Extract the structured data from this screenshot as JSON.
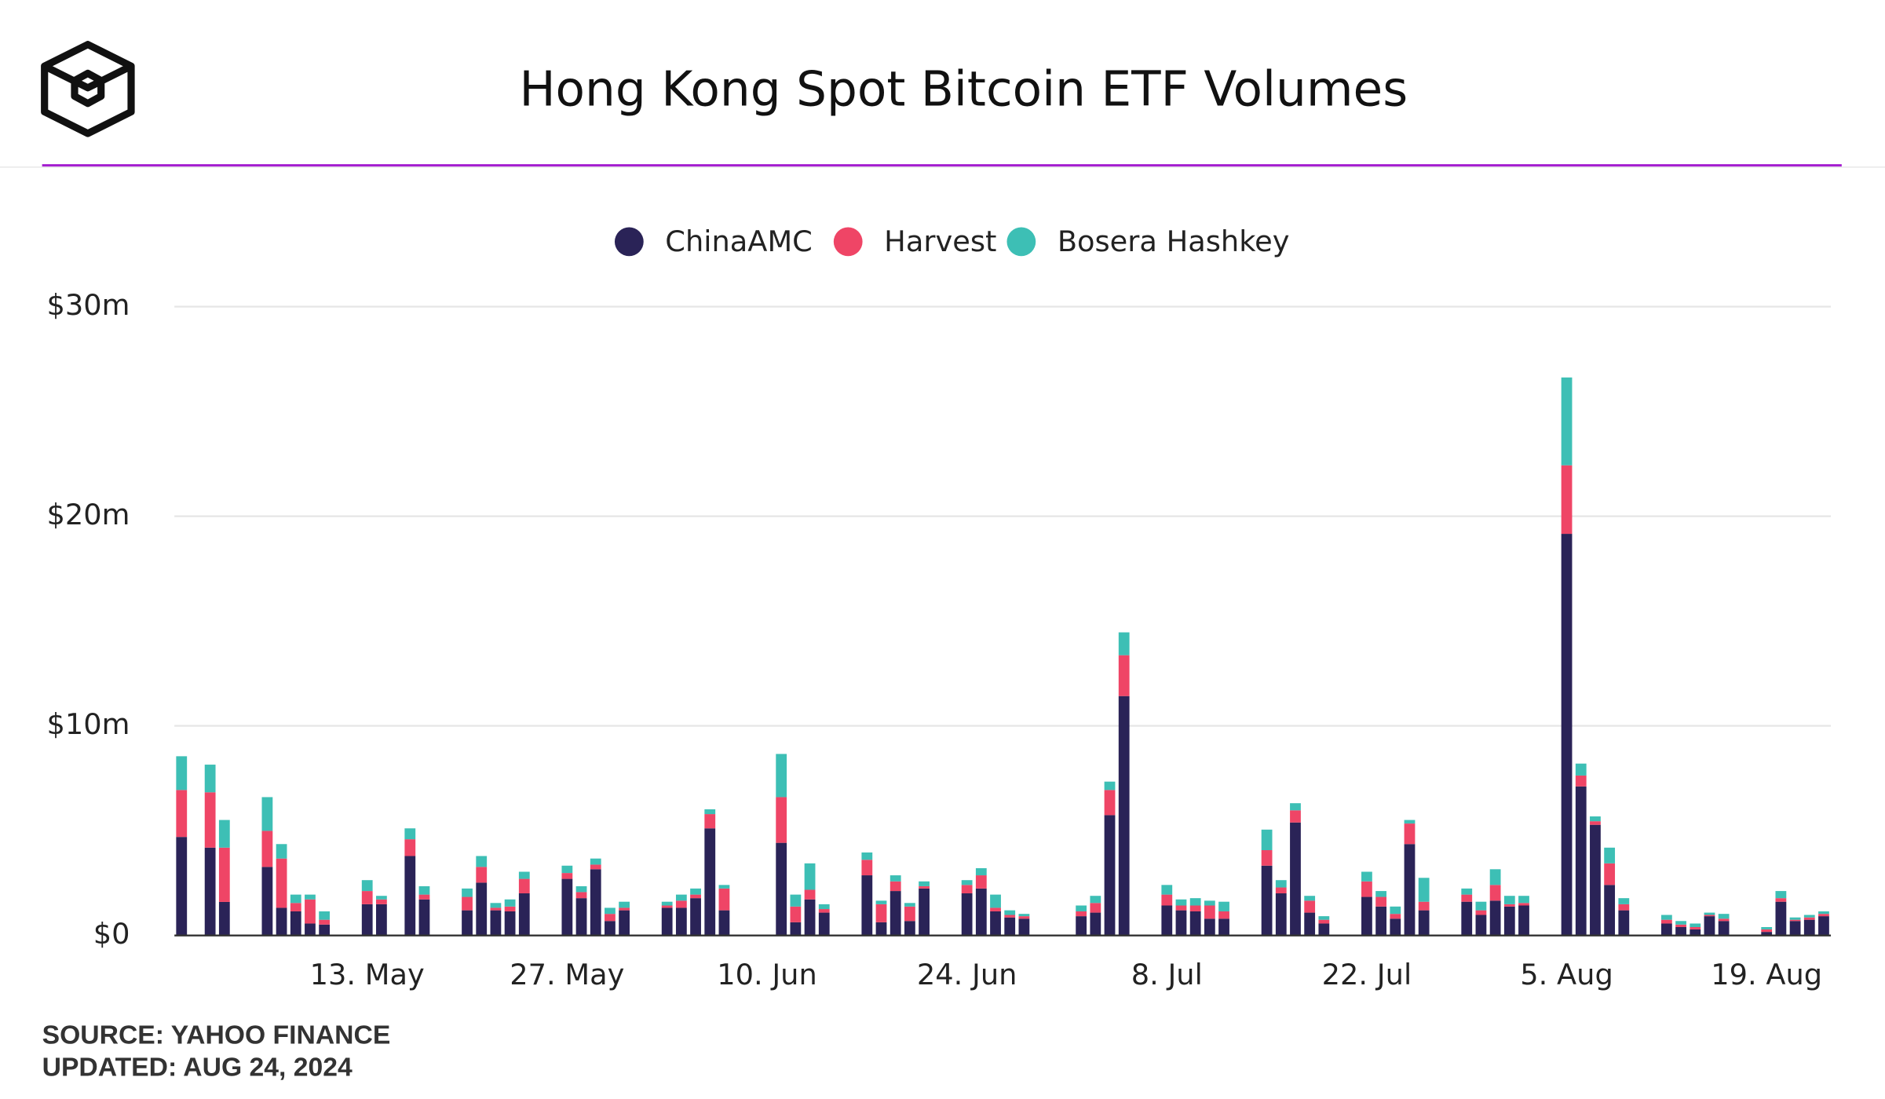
{
  "chart_data": {
    "type": "stacked_bar",
    "title": "Hong Kong Spot Bitcoin ETF Volumes",
    "source": "SOURCE: YAHOO FINANCE",
    "updated": "UPDATED: AUG 24, 2024",
    "legend": "top",
    "grid": true,
    "x": [
      121,
      123,
      124,
      127,
      128,
      129,
      130,
      131,
      134,
      135,
      137,
      138,
      141,
      142,
      143,
      144,
      145,
      148,
      149,
      150,
      151,
      152,
      155,
      156,
      157,
      158,
      159,
      163,
      164,
      165,
      166,
      169,
      170,
      171,
      172,
      173,
      176,
      177,
      178,
      179,
      180,
      184,
      185,
      186,
      187,
      190,
      191,
      192,
      193,
      194,
      197,
      198,
      199,
      200,
      201,
      204,
      205,
      206,
      207,
      208,
      211,
      212,
      213,
      214,
      215,
      218,
      219,
      220,
      221,
      222,
      225,
      226,
      227,
      228,
      229,
      232,
      233,
      234,
      235,
      236
    ],
    "xlim": [
      120.5,
      236.5
    ],
    "xticks": [
      {
        "value": 134,
        "label": "13. May"
      },
      {
        "value": 148,
        "label": "27. May"
      },
      {
        "value": 162,
        "label": "10. Jun"
      },
      {
        "value": 176,
        "label": "24. Jun"
      },
      {
        "value": 190,
        "label": "8. Jul"
      },
      {
        "value": 204,
        "label": "22. Jul"
      },
      {
        "value": 218,
        "label": "5. Aug"
      },
      {
        "value": 232,
        "label": "19. Aug"
      }
    ],
    "ylim": [
      0,
      30
    ],
    "yticks": [
      {
        "value": 0,
        "label": "$0"
      },
      {
        "value": 10,
        "label": "$10m"
      },
      {
        "value": 20,
        "label": "$20m"
      },
      {
        "value": 30,
        "label": "$30m"
      }
    ],
    "series": [
      {
        "name": "ChinaAMC",
        "color": "#2a2357",
        "values": [
          4.7,
          4.19,
          1.6,
          3.27,
          1.32,
          1.15,
          0.57,
          0.52,
          1.49,
          1.49,
          3.79,
          1.72,
          1.2,
          2.52,
          1.2,
          1.15,
          2.01,
          2.7,
          1.78,
          3.16,
          0.69,
          1.2,
          1.32,
          1.32,
          1.78,
          5.11,
          1.2,
          4.42,
          0.63,
          1.72,
          1.09,
          2.87,
          0.63,
          2.12,
          0.69,
          2.24,
          2.01,
          2.24,
          1.15,
          0.86,
          0.8,
          0.92,
          1.09,
          5.74,
          11.42,
          1.43,
          1.2,
          1.15,
          0.8,
          0.8,
          3.33,
          2.01,
          5.39,
          1.09,
          0.57,
          1.84,
          1.38,
          0.8,
          4.36,
          1.2,
          1.61,
          0.98,
          1.66,
          1.38,
          1.43,
          19.16,
          7.11,
          5.28,
          2.41,
          1.2,
          0.57,
          0.4,
          0.29,
          0.92,
          0.69,
          0.17,
          1.61,
          0.69,
          0.75,
          0.92
        ]
      },
      {
        "name": "Harvest",
        "color": "#ef4566",
        "values": [
          2.24,
          2.64,
          2.59,
          1.72,
          2.35,
          0.4,
          1.15,
          0.23,
          0.63,
          0.23,
          0.8,
          0.23,
          0.64,
          0.75,
          0.12,
          0.23,
          0.69,
          0.28,
          0.29,
          0.22,
          0.34,
          0.12,
          0.11,
          0.34,
          0.17,
          0.68,
          1.04,
          2.18,
          0.75,
          0.46,
          0.17,
          0.74,
          0.86,
          0.46,
          0.69,
          0.11,
          0.4,
          0.63,
          0.17,
          0.12,
          0.12,
          0.23,
          0.46,
          1.2,
          1.95,
          0.52,
          0.23,
          0.28,
          0.63,
          0.35,
          0.74,
          0.28,
          0.58,
          0.57,
          0.18,
          0.74,
          0.46,
          0.23,
          0.98,
          0.41,
          0.34,
          0.22,
          0.75,
          0.11,
          0.12,
          3.27,
          0.52,
          0.17,
          1.03,
          0.29,
          0.18,
          0.12,
          0.11,
          0.06,
          0.11,
          0.12,
          0.17,
          0.06,
          0.11,
          0.11
        ]
      },
      {
        "name": "Bosera Hashkey",
        "color": "#3dbfb5",
        "values": [
          1.61,
          1.32,
          1.32,
          1.61,
          0.69,
          0.4,
          0.23,
          0.4,
          0.52,
          0.17,
          0.52,
          0.4,
          0.4,
          0.52,
          0.23,
          0.34,
          0.34,
          0.35,
          0.28,
          0.29,
          0.29,
          0.29,
          0.18,
          0.29,
          0.29,
          0.23,
          0.17,
          2.06,
          0.57,
          1.26,
          0.23,
          0.35,
          0.17,
          0.29,
          0.17,
          0.23,
          0.23,
          0.34,
          0.63,
          0.22,
          0.11,
          0.28,
          0.34,
          0.4,
          1.09,
          0.46,
          0.29,
          0.35,
          0.23,
          0.46,
          0.98,
          0.35,
          0.34,
          0.23,
          0.17,
          0.46,
          0.28,
          0.35,
          0.17,
          1.14,
          0.29,
          0.41,
          0.75,
          0.4,
          0.34,
          4.19,
          0.57,
          0.23,
          0.75,
          0.29,
          0.23,
          0.17,
          0.17,
          0.11,
          0.23,
          0.11,
          0.34,
          0.11,
          0.12,
          0.12
        ]
      }
    ]
  }
}
